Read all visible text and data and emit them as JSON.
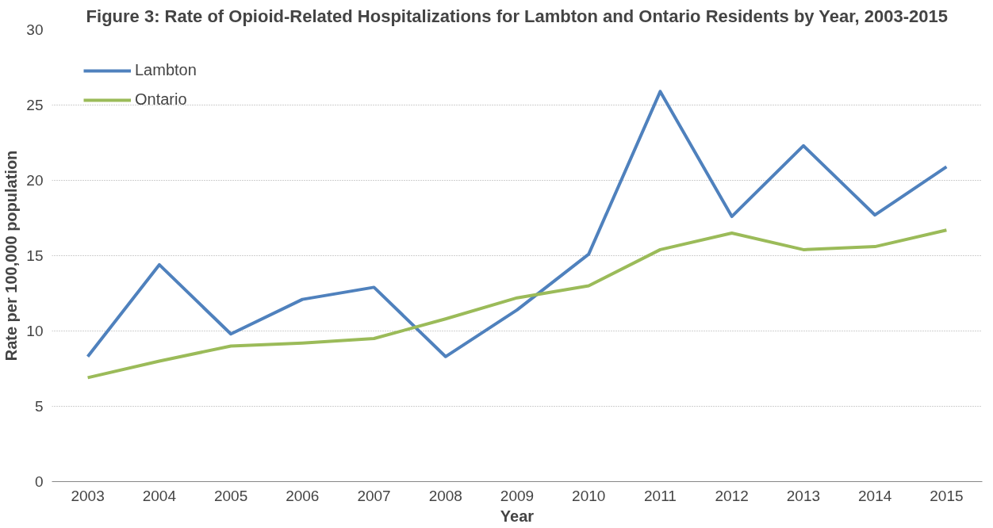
{
  "chart_data": {
    "type": "line",
    "title": "Figure 3: Rate of Opioid-Related Hospitalizations for Lambton and Ontario Residents by Year, 2003-2015",
    "xlabel": "Year",
    "ylabel": "Rate per 100,000 population",
    "categories": [
      "2003",
      "2004",
      "2005",
      "2006",
      "2007",
      "2008",
      "2009",
      "2010",
      "2011",
      "2012",
      "2013",
      "2014",
      "2015"
    ],
    "series": [
      {
        "name": "Lambton",
        "color": "#4f81bd",
        "values": [
          8.3,
          14.4,
          9.8,
          12.1,
          12.9,
          8.3,
          11.4,
          15.1,
          25.9,
          17.6,
          22.3,
          17.7,
          20.9
        ]
      },
      {
        "name": "Ontario",
        "color": "#9bbb59",
        "values": [
          6.9,
          8.0,
          9.0,
          9.2,
          9.5,
          10.8,
          12.2,
          13.0,
          15.4,
          16.5,
          15.4,
          15.6,
          16.7
        ]
      }
    ],
    "ylim": [
      0,
      30
    ],
    "yticks": [
      0,
      5,
      10,
      15,
      20,
      25,
      30
    ],
    "grid": "y",
    "legend": "top left",
    "marker": "none",
    "line_style": "solid"
  }
}
